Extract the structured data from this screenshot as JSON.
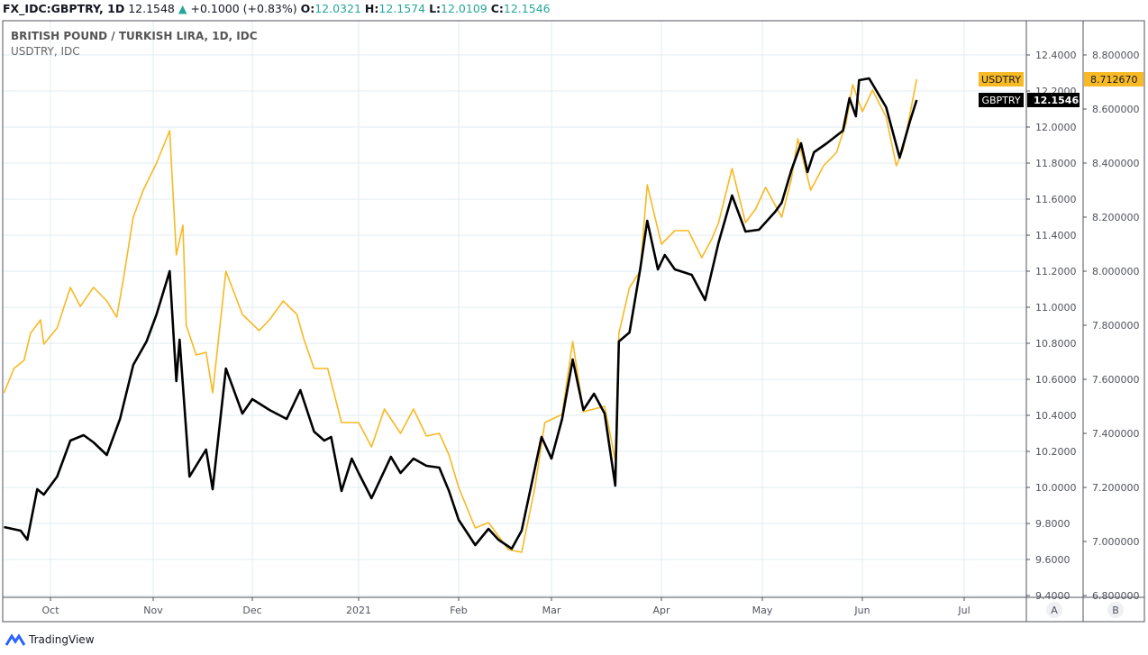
{
  "header": {
    "symbol": "FX_IDC:GBPTRY, 1D",
    "last": "12.1548",
    "change": "+0.1000 (+0.83%)",
    "o_label": "O:",
    "o": "12.0321",
    "h_label": "H:",
    "h": "12.1574",
    "l_label": "L:",
    "l": "12.0109",
    "c_label": "C:",
    "c": "12.1546"
  },
  "brand": "TradingView",
  "colors": {
    "gbptry": "#000000",
    "usdtry": "#f7b924",
    "grid": "#e1ecf2",
    "up": "#26a69a"
  },
  "chart_data": {
    "type": "line",
    "title": "BRITISH POUND / TURKISH LIRA, 1D, IDC",
    "subtitle": "USDTRY, IDC",
    "x_ticks": [
      "Oct",
      "Nov",
      "Dec",
      "2021",
      "Feb",
      "Mar",
      "Apr",
      "May",
      "Jun",
      "Jul"
    ],
    "axis_a": {
      "label": "A",
      "range": [
        9.4,
        12.4
      ],
      "ticks": [
        "12.4000",
        "12.2000",
        "12.0000",
        "11.8000",
        "11.6000",
        "11.4000",
        "11.2000",
        "11.0000",
        "10.8000",
        "10.6000",
        "10.4000",
        "10.2000",
        "10.0000",
        "9.8000",
        "9.6000",
        "9.4000"
      ]
    },
    "axis_b": {
      "label": "B",
      "range": [
        6.8,
        8.8
      ],
      "ticks": [
        "8.800000",
        "8.600000",
        "8.400000",
        "8.200000",
        "8.000000",
        "7.800000",
        "7.600000",
        "7.400000",
        "7.200000",
        "7.000000",
        "6.800000"
      ]
    },
    "grid": true,
    "series": [
      {
        "name": "USDTRY",
        "axis": "B",
        "last_label": "8.712670",
        "points": [
          [
            "2020-09-17",
            7.55
          ],
          [
            "2020-09-20",
            7.64
          ],
          [
            "2020-09-23",
            7.67
          ],
          [
            "2020-09-25",
            7.77
          ],
          [
            "2020-09-28",
            7.82
          ],
          [
            "2020-09-29",
            7.73
          ],
          [
            "2020-10-03",
            7.79
          ],
          [
            "2020-10-07",
            7.94
          ],
          [
            "2020-10-10",
            7.87
          ],
          [
            "2020-10-14",
            7.94
          ],
          [
            "2020-10-18",
            7.89
          ],
          [
            "2020-10-21",
            7.83
          ],
          [
            "2020-10-23",
            7.97
          ],
          [
            "2020-10-26",
            8.2
          ],
          [
            "2020-10-29",
            8.3
          ],
          [
            "2020-11-02",
            8.4
          ],
          [
            "2020-11-06",
            8.52
          ],
          [
            "2020-11-08",
            8.06
          ],
          [
            "2020-11-10",
            8.17
          ],
          [
            "2020-11-11",
            7.8
          ],
          [
            "2020-11-14",
            7.69
          ],
          [
            "2020-11-17",
            7.7
          ],
          [
            "2020-11-19",
            7.55
          ],
          [
            "2020-11-23",
            8.0
          ],
          [
            "2020-11-28",
            7.84
          ],
          [
            "2020-12-03",
            7.78
          ],
          [
            "2020-12-06",
            7.82
          ],
          [
            "2020-12-10",
            7.89
          ],
          [
            "2020-12-14",
            7.84
          ],
          [
            "2020-12-16",
            7.75
          ],
          [
            "2020-12-19",
            7.64
          ],
          [
            "2020-12-23",
            7.64
          ],
          [
            "2020-12-27",
            7.44
          ],
          [
            "2021-01-01",
            7.44
          ],
          [
            "2021-01-05",
            7.35
          ],
          [
            "2021-01-09",
            7.49
          ],
          [
            "2021-01-14",
            7.4
          ],
          [
            "2021-01-18",
            7.49
          ],
          [
            "2021-01-22",
            7.39
          ],
          [
            "2021-01-26",
            7.4
          ],
          [
            "2021-01-29",
            7.32
          ],
          [
            "2021-02-01",
            7.2
          ],
          [
            "2021-02-06",
            7.05
          ],
          [
            "2021-02-10",
            7.07
          ],
          [
            "2021-02-16",
            6.97
          ],
          [
            "2021-02-20",
            6.96
          ],
          [
            "2021-02-24",
            7.2
          ],
          [
            "2021-02-27",
            7.44
          ],
          [
            "2021-03-04",
            7.47
          ],
          [
            "2021-03-07",
            7.74
          ],
          [
            "2021-03-10",
            7.48
          ],
          [
            "2021-03-16",
            7.5
          ],
          [
            "2021-03-19",
            7.3
          ],
          [
            "2021-03-20",
            7.77
          ],
          [
            "2021-03-23",
            7.94
          ],
          [
            "2021-03-26",
            8.0
          ],
          [
            "2021-03-28",
            8.32
          ],
          [
            "2021-04-01",
            8.1
          ],
          [
            "2021-04-05",
            8.15
          ],
          [
            "2021-04-09",
            8.15
          ],
          [
            "2021-04-13",
            8.05
          ],
          [
            "2021-04-16",
            8.12
          ],
          [
            "2021-04-18",
            8.18
          ],
          [
            "2021-04-22",
            8.38
          ],
          [
            "2021-04-26",
            8.18
          ],
          [
            "2021-04-29",
            8.23
          ],
          [
            "2021-05-02",
            8.31
          ],
          [
            "2021-05-07",
            8.2
          ],
          [
            "2021-05-10",
            8.34
          ],
          [
            "2021-05-12",
            8.49
          ],
          [
            "2021-05-16",
            8.3
          ],
          [
            "2021-05-20",
            8.39
          ],
          [
            "2021-05-24",
            8.44
          ],
          [
            "2021-05-27",
            8.55
          ],
          [
            "2021-05-29",
            8.69
          ],
          [
            "2021-06-01",
            8.59
          ],
          [
            "2021-06-04",
            8.67
          ],
          [
            "2021-06-08",
            8.57
          ],
          [
            "2021-06-11",
            8.39
          ],
          [
            "2021-06-13",
            8.45
          ],
          [
            "2021-06-17",
            8.71
          ]
        ]
      },
      {
        "name": "GBPTRY",
        "axis": "A",
        "last_label": "12.1546",
        "points": [
          [
            "2020-09-17",
            9.78
          ],
          [
            "2020-09-22",
            9.76
          ],
          [
            "2020-09-24",
            9.71
          ],
          [
            "2020-09-27",
            9.99
          ],
          [
            "2020-09-29",
            9.96
          ],
          [
            "2020-10-03",
            10.06
          ],
          [
            "2020-10-07",
            10.26
          ],
          [
            "2020-10-11",
            10.29
          ],
          [
            "2020-10-14",
            10.25
          ],
          [
            "2020-10-18",
            10.18
          ],
          [
            "2020-10-22",
            10.38
          ],
          [
            "2020-10-26",
            10.68
          ],
          [
            "2020-10-30",
            10.81
          ],
          [
            "2020-11-02",
            10.96
          ],
          [
            "2020-11-06",
            11.2
          ],
          [
            "2020-11-08",
            10.59
          ],
          [
            "2020-11-09",
            10.82
          ],
          [
            "2020-11-11",
            10.31
          ],
          [
            "2020-11-12",
            10.06
          ],
          [
            "2020-11-17",
            10.21
          ],
          [
            "2020-11-19",
            9.99
          ],
          [
            "2020-11-23",
            10.66
          ],
          [
            "2020-11-28",
            10.41
          ],
          [
            "2020-12-01",
            10.49
          ],
          [
            "2020-12-06",
            10.43
          ],
          [
            "2020-12-11",
            10.38
          ],
          [
            "2020-12-15",
            10.54
          ],
          [
            "2020-12-19",
            10.31
          ],
          [
            "2020-12-22",
            10.26
          ],
          [
            "2020-12-24",
            10.28
          ],
          [
            "2020-12-27",
            9.98
          ],
          [
            "2020-12-30",
            10.16
          ],
          [
            "2021-01-01",
            10.08
          ],
          [
            "2021-01-05",
            9.94
          ],
          [
            "2021-01-11",
            10.17
          ],
          [
            "2021-01-14",
            10.08
          ],
          [
            "2021-01-18",
            10.16
          ],
          [
            "2021-01-22",
            10.12
          ],
          [
            "2021-01-26",
            10.11
          ],
          [
            "2021-01-29",
            9.98
          ],
          [
            "2021-02-01",
            9.82
          ],
          [
            "2021-02-06",
            9.68
          ],
          [
            "2021-02-10",
            9.77
          ],
          [
            "2021-02-13",
            9.71
          ],
          [
            "2021-02-17",
            9.66
          ],
          [
            "2021-02-20",
            9.76
          ],
          [
            "2021-02-26",
            10.28
          ],
          [
            "2021-03-01",
            10.16
          ],
          [
            "2021-03-04",
            10.38
          ],
          [
            "2021-03-07",
            10.71
          ],
          [
            "2021-03-10",
            10.43
          ],
          [
            "2021-03-13",
            10.52
          ],
          [
            "2021-03-16",
            10.41
          ],
          [
            "2021-03-19",
            10.01
          ],
          [
            "2021-03-20",
            10.81
          ],
          [
            "2021-03-23",
            10.86
          ],
          [
            "2021-03-26",
            11.21
          ],
          [
            "2021-03-28",
            11.48
          ],
          [
            "2021-03-31",
            11.21
          ],
          [
            "2021-04-02",
            11.29
          ],
          [
            "2021-04-05",
            11.21
          ],
          [
            "2021-04-10",
            11.18
          ],
          [
            "2021-04-14",
            11.04
          ],
          [
            "2021-04-18",
            11.36
          ],
          [
            "2021-04-22",
            11.62
          ],
          [
            "2021-04-26",
            11.42
          ],
          [
            "2021-04-30",
            11.43
          ],
          [
            "2021-05-05",
            11.53
          ],
          [
            "2021-05-07",
            11.58
          ],
          [
            "2021-05-10",
            11.76
          ],
          [
            "2021-05-13",
            11.91
          ],
          [
            "2021-05-15",
            11.75
          ],
          [
            "2021-05-17",
            11.86
          ],
          [
            "2021-05-21",
            11.91
          ],
          [
            "2021-05-26",
            11.98
          ],
          [
            "2021-05-28",
            12.16
          ],
          [
            "2021-05-30",
            12.06
          ],
          [
            "2021-05-31",
            12.26
          ],
          [
            "2021-06-03",
            12.27
          ],
          [
            "2021-06-08",
            12.11
          ],
          [
            "2021-06-12",
            11.83
          ],
          [
            "2021-06-15",
            12.03
          ],
          [
            "2021-06-17",
            12.15
          ]
        ]
      }
    ]
  }
}
